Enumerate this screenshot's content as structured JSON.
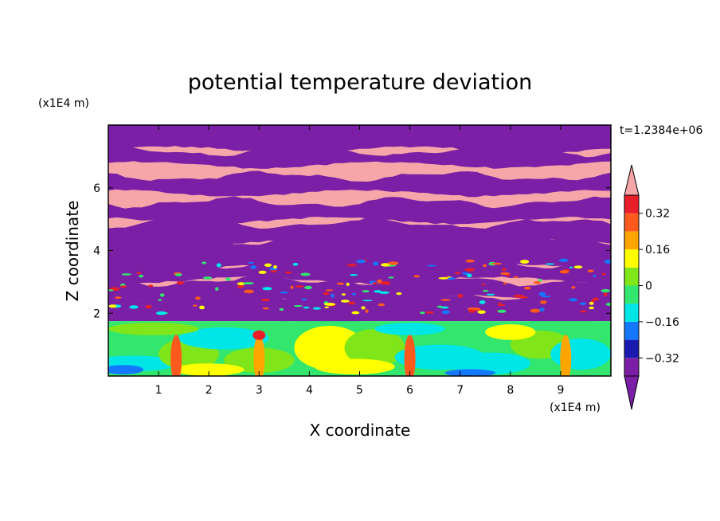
{
  "chart_data": {
    "type": "heatmap",
    "title": "potential temperature deviation",
    "xlabel": "X coordinate",
    "ylabel": "Z coordinate",
    "x_unit": "(x1E4 m)",
    "y_unit": "(x1E4 m)",
    "time_label": "t=1.2384e+06",
    "xlim": [
      0,
      10
    ],
    "ylim": [
      0,
      8
    ],
    "x_ticks": [
      "1",
      "2",
      "3",
      "4",
      "5",
      "6",
      "7",
      "8",
      "9"
    ],
    "y_ticks": [
      "2",
      "4",
      "6"
    ],
    "grid": false,
    "colorbar": {
      "position": "right",
      "extend": "both",
      "levels": [
        -0.4,
        -0.32,
        -0.24,
        -0.16,
        -0.08,
        0,
        0.08,
        0.16,
        0.24,
        0.32,
        0.4
      ],
      "tick_labels": [
        "0.32",
        "0.16",
        "0",
        "−0.16",
        "−0.32"
      ],
      "tick_values": [
        0.32,
        0.16,
        0,
        -0.16,
        -0.32
      ],
      "under_color": "#7a1fa6",
      "over_color": "#f6a6a9",
      "colors": [
        "#7a1fa6",
        "#1b1ab0",
        "#1478ff",
        "#00e6e6",
        "#33e66e",
        "#80e619",
        "#ffff00",
        "#ffa500",
        "#ff5a1e",
        "#e81e2a"
      ]
    },
    "description_values": {
      "upper_layer_band_colors": [
        "#7a1fa6",
        "#f6a6a9"
      ],
      "lower_layer_dominant_colors": [
        "#00e6e6",
        "#33e66e",
        "#80e619",
        "#ffff00"
      ]
    }
  }
}
